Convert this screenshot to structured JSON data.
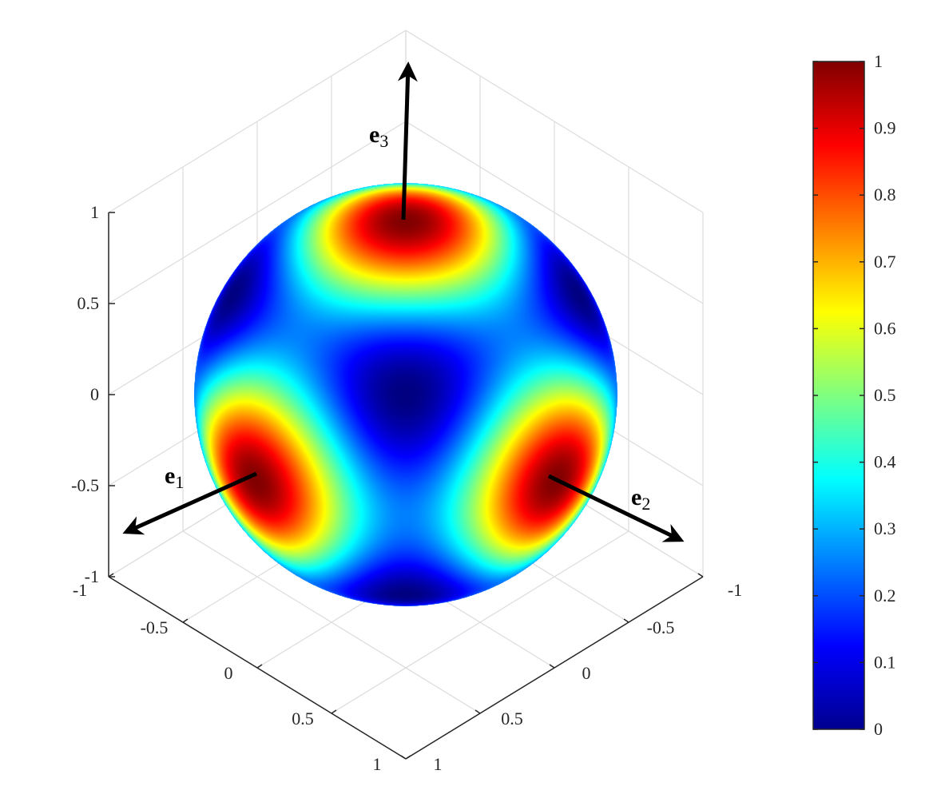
{
  "chart_data": {
    "type": "heatmap",
    "projection": "3-D isometric",
    "surface": "unit sphere",
    "colormap": "jet",
    "axes": {
      "x": {
        "ticks": [
          -1,
          -0.5,
          0,
          0.5,
          1
        ],
        "tick_labels": [
          "-1",
          "-0.5",
          "0",
          "0.5",
          "1"
        ],
        "range": [
          -1,
          1
        ]
      },
      "y": {
        "ticks": [
          -1,
          -0.5,
          0,
          0.5,
          1
        ],
        "tick_labels": [
          "-1",
          "-0.5",
          "0",
          "0.5",
          "1"
        ],
        "range": [
          -1,
          1
        ]
      },
      "z": {
        "ticks": [
          -1,
          -0.5,
          0,
          0.5,
          1
        ],
        "tick_labels": [
          "-1",
          "-0.5",
          "0",
          "0.5",
          "1"
        ],
        "range": [
          -1,
          1
        ]
      }
    },
    "colorbar": {
      "ticks": [
        0,
        0.1,
        0.2,
        0.3,
        0.4,
        0.5,
        0.6,
        0.7,
        0.8,
        0.9,
        1
      ],
      "tick_labels": [
        "0",
        "0.1",
        "0.2",
        "0.3",
        "0.4",
        "0.5",
        "0.6",
        "0.7",
        "0.8",
        "0.9",
        "1"
      ],
      "range": [
        0,
        1
      ]
    },
    "vectors": [
      {
        "main": "e",
        "sub": "1"
      },
      {
        "main": "e",
        "sub": "2"
      },
      {
        "main": "e",
        "sub": "3"
      }
    ],
    "grid": true
  }
}
